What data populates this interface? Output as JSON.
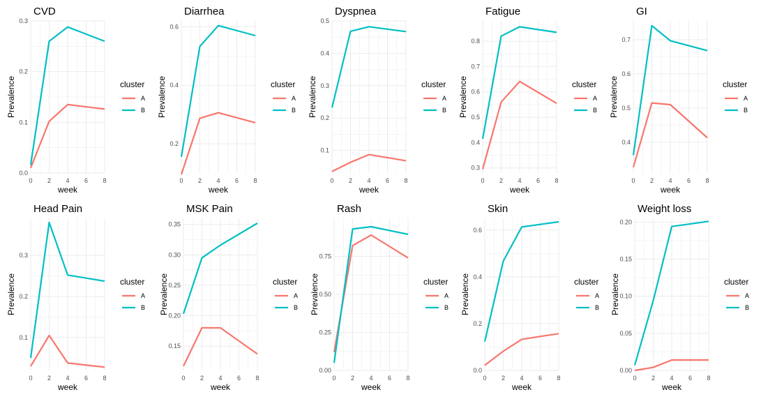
{
  "shared": {
    "x_label": "week",
    "y_label": "Prevalence",
    "legend_title": "cluster",
    "x_ticks": [
      0,
      2,
      4,
      6,
      8
    ],
    "colors": {
      "A": "#F8766D",
      "B": "#00BFC4",
      "grid": "#ebebeb"
    }
  },
  "chart_data": [
    {
      "type": "line",
      "title": "CVD",
      "x": [
        0,
        2,
        4,
        8
      ],
      "ylim": [
        0,
        0.3
      ],
      "yticks": [
        "0.0",
        "0.1",
        "0.2",
        "0.3"
      ],
      "grid": true,
      "legend": "right",
      "series": [
        {
          "name": "A",
          "values": [
            0.01,
            0.102,
            0.135,
            0.126
          ]
        },
        {
          "name": "B",
          "values": [
            0.016,
            0.26,
            0.288,
            0.26
          ]
        }
      ]
    },
    {
      "type": "line",
      "title": "Diarrhea",
      "x": [
        0,
        2,
        4,
        8
      ],
      "ylim": [
        0.1,
        0.62
      ],
      "yticks": [
        "0.2",
        "0.4",
        "0.6"
      ],
      "grid": true,
      "legend": "right",
      "series": [
        {
          "name": "A",
          "values": [
            0.095,
            0.287,
            0.306,
            0.272
          ]
        },
        {
          "name": "B",
          "values": [
            0.155,
            0.533,
            0.604,
            0.57
          ]
        }
      ]
    },
    {
      "type": "line",
      "title": "Dyspnea",
      "x": [
        0,
        2,
        4,
        8
      ],
      "ylim": [
        0.03,
        0.5
      ],
      "yticks": [
        "0.1",
        "0.2",
        "0.3",
        "0.4",
        "0.5"
      ],
      "grid": true,
      "legend": "right",
      "series": [
        {
          "name": "A",
          "values": [
            0.035,
            0.063,
            0.087,
            0.068
          ]
        },
        {
          "name": "B",
          "values": [
            0.232,
            0.468,
            0.482,
            0.467
          ]
        }
      ]
    },
    {
      "type": "line",
      "title": "Fatigue",
      "x": [
        0,
        2,
        4,
        8
      ],
      "ylim": [
        0.28,
        0.88
      ],
      "yticks": [
        "0.3",
        "0.4",
        "0.5",
        "0.6",
        "0.7",
        "0.8"
      ],
      "grid": true,
      "legend": "right",
      "series": [
        {
          "name": "A",
          "values": [
            0.295,
            0.56,
            0.641,
            0.555
          ]
        },
        {
          "name": "B",
          "values": [
            0.415,
            0.82,
            0.857,
            0.835
          ]
        }
      ]
    },
    {
      "type": "line",
      "title": "GI",
      "x": [
        0,
        2,
        4,
        8
      ],
      "ylim": [
        0.31,
        0.755
      ],
      "yticks": [
        "0.4",
        "0.5",
        "0.6",
        "0.7"
      ],
      "grid": true,
      "legend": "right",
      "series": [
        {
          "name": "A",
          "values": [
            0.327,
            0.515,
            0.51,
            0.413
          ]
        },
        {
          "name": "B",
          "values": [
            0.362,
            0.741,
            0.697,
            0.668
          ]
        }
      ]
    },
    {
      "type": "line",
      "title": "Head Pain",
      "x": [
        0,
        2,
        4,
        8
      ],
      "ylim": [
        0.02,
        0.39
      ],
      "yticks": [
        "0.1",
        "0.2",
        "0.3"
      ],
      "grid": true,
      "legend": "right",
      "series": [
        {
          "name": "A",
          "values": [
            0.03,
            0.105,
            0.038,
            0.028
          ]
        },
        {
          "name": "B",
          "values": [
            0.05,
            0.38,
            0.252,
            0.237
          ]
        }
      ]
    },
    {
      "type": "line",
      "title": "MSK Pain",
      "x": [
        0,
        2,
        4,
        8
      ],
      "ylim": [
        0.11,
        0.36
      ],
      "yticks": [
        "0.15",
        "0.20",
        "0.25",
        "0.30",
        "0.35"
      ],
      "grid": true,
      "legend": "right",
      "series": [
        {
          "name": "A",
          "values": [
            0.117,
            0.18,
            0.18,
            0.137
          ]
        },
        {
          "name": "B",
          "values": [
            0.203,
            0.295,
            0.316,
            0.352
          ]
        }
      ]
    },
    {
      "type": "line",
      "title": "Rash",
      "x": [
        0,
        2,
        4,
        8
      ],
      "ylim": [
        0,
        1
      ],
      "yticks": [
        "0.00",
        "0.25",
        "0.50",
        "0.75"
      ],
      "grid": true,
      "legend": "right",
      "series": [
        {
          "name": "A",
          "values": [
            0.12,
            0.82,
            0.89,
            0.74
          ]
        },
        {
          "name": "B",
          "values": [
            0.05,
            0.93,
            0.945,
            0.895
          ]
        }
      ]
    },
    {
      "type": "line",
      "title": "Skin",
      "x": [
        0,
        2,
        4,
        8
      ],
      "ylim": [
        0,
        0.65
      ],
      "yticks": [
        "0.0",
        "0.2",
        "0.4",
        "0.6"
      ],
      "grid": true,
      "legend": "right",
      "series": [
        {
          "name": "A",
          "values": [
            0.022,
            0.082,
            0.133,
            0.157
          ]
        },
        {
          "name": "B",
          "values": [
            0.123,
            0.467,
            0.613,
            0.635
          ]
        }
      ]
    },
    {
      "type": "line",
      "title": "Weight loss",
      "x": [
        0,
        2,
        4,
        8
      ],
      "ylim": [
        0,
        0.205
      ],
      "yticks": [
        "0.00",
        "0.05",
        "0.10",
        "0.15",
        "0.20"
      ],
      "grid": true,
      "legend": "right",
      "series": [
        {
          "name": "A",
          "values": [
            0.0,
            0.004,
            0.014,
            0.014
          ]
        },
        {
          "name": "B",
          "values": [
            0.007,
            0.094,
            0.194,
            0.201
          ]
        }
      ]
    }
  ]
}
